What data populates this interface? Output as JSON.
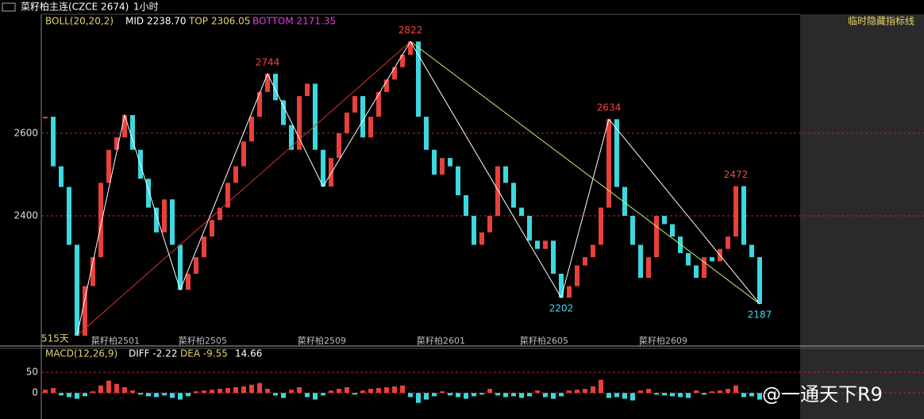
{
  "header": {
    "title": "菜籽柏主连(CZCE 2674)",
    "period": "1小时"
  },
  "side_panel": {
    "button": "临时隐藏指标线"
  },
  "watermark": "@一通天下R9",
  "chart_data": [
    {
      "type": "line",
      "indicator": {
        "name": "BOLL(20,20,2)",
        "mid": "MID 2238.70",
        "top": "TOP 2306.05",
        "bottom": "BOTTOM 2171.35"
      },
      "footnote": "515天",
      "categories": [
        null,
        null,
        null,
        null,
        null,
        null,
        "菜籽柏2501",
        null,
        null,
        null,
        null,
        null,
        null,
        null,
        null,
        null,
        null,
        "菜籽柏2505",
        null,
        null,
        null,
        null,
        null,
        null,
        null,
        null,
        null,
        null,
        null,
        null,
        null,
        null,
        "菜籽柏2509",
        null,
        null,
        null,
        null,
        null,
        null,
        null,
        null,
        null,
        null,
        null,
        null,
        null,
        null,
        "菜籽柏2601",
        null,
        null,
        null,
        null,
        null,
        null,
        null,
        null,
        null,
        null,
        null,
        null,
        "菜籽柏2605",
        null,
        null,
        null,
        null,
        null,
        null,
        null,
        null,
        null,
        null,
        null,
        null,
        null,
        null,
        "菜籽柏2609",
        null,
        null,
        null,
        null,
        null,
        null,
        null,
        null,
        null,
        null,
        null,
        null,
        null,
        null,
        null
      ],
      "values": [
        2640,
        2520,
        2470,
        2330,
        2110,
        2230,
        2300,
        2480,
        2560,
        2590,
        2644,
        2560,
        2490,
        2420,
        2360,
        2440,
        2330,
        2221,
        2260,
        2300,
        2350,
        2390,
        2420,
        2480,
        2520,
        2580,
        2640,
        2700,
        2744,
        2680,
        2620,
        2560,
        2690,
        2720,
        2560,
        2471,
        2540,
        2600,
        2650,
        2690,
        2590,
        2640,
        2700,
        2730,
        2760,
        2790,
        2822,
        2640,
        2560,
        2500,
        2540,
        2520,
        2450,
        2400,
        2330,
        2360,
        2400,
        2520,
        2480,
        2420,
        2400,
        2340,
        2320,
        2340,
        2260,
        2202,
        2230,
        2280,
        2300,
        2330,
        2420,
        2634,
        2470,
        2400,
        2330,
        2250,
        2300,
        2400,
        2380,
        2350,
        2310,
        2280,
        2250,
        2300,
        2290,
        2320,
        2350,
        2472,
        2330,
        2300,
        2187
      ],
      "colors": {
        "up": "#e8403c",
        "down": "#3cd8e0"
      },
      "ylim": [
        2087,
        2888
      ],
      "yticks": [
        2600,
        2400
      ],
      "grid": true,
      "zigzag": {
        "color": "#ffffff",
        "x": [
          4,
          10,
          17,
          28,
          35,
          46,
          65,
          71,
          90
        ],
        "values": [
          2110,
          2644,
          2221,
          2744,
          2471,
          2822,
          2202,
          2634,
          2187
        ]
      },
      "trend_lines": [
        {
          "color": "#d8302c",
          "x": [
            4,
            46
          ],
          "values": [
            2110,
            2822
          ]
        },
        {
          "color": "#c8f070",
          "x": [
            46,
            90
          ],
          "values": [
            2822,
            2187
          ]
        }
      ],
      "annotations": [
        {
          "x": 28,
          "value": 2744,
          "color": "#ff4040"
        },
        {
          "x": 46,
          "value": 2822,
          "color": "#ff4040"
        },
        {
          "x": 65,
          "value": 2202,
          "color": "#40d8f0"
        },
        {
          "x": 71,
          "value": 2634,
          "color": "#ff4040"
        },
        {
          "x": 87,
          "value": 2472,
          "color": "#ff4040"
        },
        {
          "x": 90,
          "value": 2187,
          "color": "#40d8f0"
        }
      ]
    },
    {
      "type": "bar",
      "indicator": {
        "name": "MACD(12,26,9)",
        "diff": "DIFF -2.22",
        "dea": "DEA -9.55",
        "macd": "14.66"
      },
      "values": [
        8,
        12,
        -6,
        -10,
        -14,
        -8,
        4,
        18,
        30,
        22,
        14,
        6,
        -4,
        -8,
        -10,
        -6,
        -12,
        -16,
        -8,
        4,
        6,
        8,
        10,
        12,
        14,
        16,
        20,
        24,
        10,
        -6,
        -12,
        8,
        14,
        -10,
        -16,
        -6,
        6,
        10,
        14,
        -4,
        6,
        10,
        12,
        14,
        16,
        18,
        -10,
        -24,
        -16,
        -8,
        4,
        -6,
        -10,
        -14,
        -8,
        -4,
        10,
        -6,
        -10,
        -8,
        -12,
        -8,
        6,
        -10,
        -14,
        -8,
        6,
        8,
        10,
        16,
        32,
        -12,
        -10,
        -14,
        -18,
        6,
        10,
        -4,
        -6,
        -8,
        -10,
        -12,
        6,
        -4,
        4,
        6,
        10,
        18,
        -10,
        -8,
        -16
      ],
      "colors": {
        "up": "#e8403c",
        "down": "#3cd8e0"
      },
      "ylim": [
        -63,
        106
      ],
      "yticks": [
        50,
        0
      ],
      "grid": true
    }
  ]
}
